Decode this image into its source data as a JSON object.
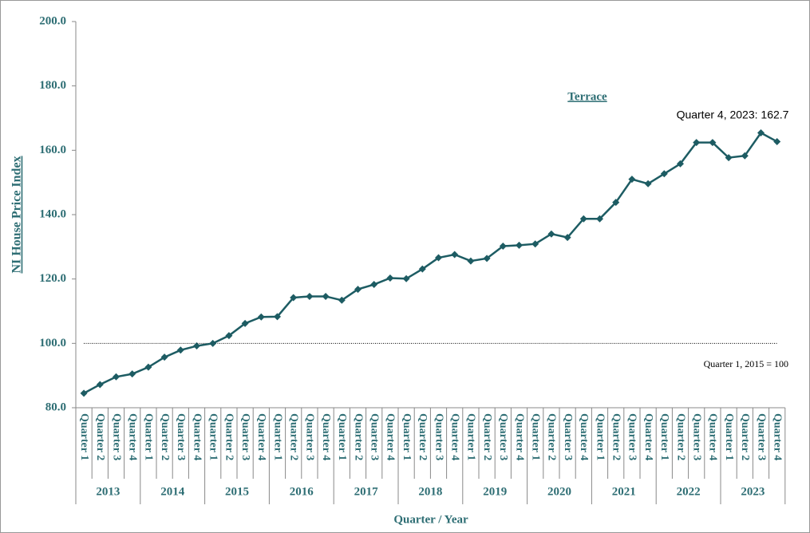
{
  "chart_data": {
    "type": "line",
    "title": "Terrace",
    "y_label": "NI House Price Index",
    "x_label": "Quarter / Year",
    "annotation": "Quarter 4, 2023: 162.7",
    "reference_note": "Quarter 1, 2015 = 100",
    "reference_line": 100,
    "categories": [
      "Quarter 1",
      "Quarter 2",
      "Quarter 3",
      "Quarter 4",
      "Quarter 1",
      "Quarter 2",
      "Quarter 3",
      "Quarter 4",
      "Quarter 1",
      "Quarter 2",
      "Quarter 3",
      "Quarter 4",
      "Quarter 1",
      "Quarter 2",
      "Quarter 3",
      "Quarter 4",
      "Quarter 1",
      "Quarter 2",
      "Quarter 3",
      "Quarter 4",
      "Quarter 1",
      "Quarter 2",
      "Quarter 3",
      "Quarter 4",
      "Quarter 1",
      "Quarter 2",
      "Quarter 3",
      "Quarter 4",
      "Quarter 1",
      "Quarter 2",
      "Quarter 3",
      "Quarter 4",
      "Quarter 1",
      "Quarter 2",
      "Quarter 3",
      "Quarter 4",
      "Quarter 1",
      "Quarter 2",
      "Quarter 3",
      "Quarter 4",
      "Quarter 1",
      "Quarter 2",
      "Quarter 3",
      "Quarter 4"
    ],
    "years": [
      "2013",
      "2014",
      "2015",
      "2016",
      "2017",
      "2018",
      "2019",
      "2020",
      "2021",
      "2022",
      "2023"
    ],
    "series": [
      {
        "name": "Terrace",
        "color": "#1d5c63",
        "values": [
          84.5,
          87.2,
          89.6,
          90.5,
          92.6,
          95.7,
          97.9,
          99.2,
          100,
          102.4,
          106.2,
          108.2,
          108.3,
          114.2,
          114.6,
          114.6,
          113.4,
          116.8,
          118.3,
          120.3,
          120.1,
          123.1,
          126.6,
          127.6,
          125.6,
          126.4,
          130.2,
          130.5,
          130.9,
          134.0,
          132.9,
          138.7,
          138.7,
          143.8,
          151.0,
          149.6,
          152.7,
          155.8,
          162.4,
          162.4,
          157.7,
          158.3,
          165.4,
          162.7
        ]
      }
    ],
    "ylim": [
      80,
      200
    ],
    "yticks": [
      {
        "value": 80,
        "label": "80.0"
      },
      {
        "value": 100,
        "label": "100.0"
      },
      {
        "value": 120,
        "label": "120.0"
      },
      {
        "value": 140,
        "label": "140.0"
      },
      {
        "value": 160,
        "label": "160.0"
      },
      {
        "value": 180,
        "label": "180.0"
      },
      {
        "value": 200,
        "label": "200.0"
      }
    ],
    "grid": false
  }
}
